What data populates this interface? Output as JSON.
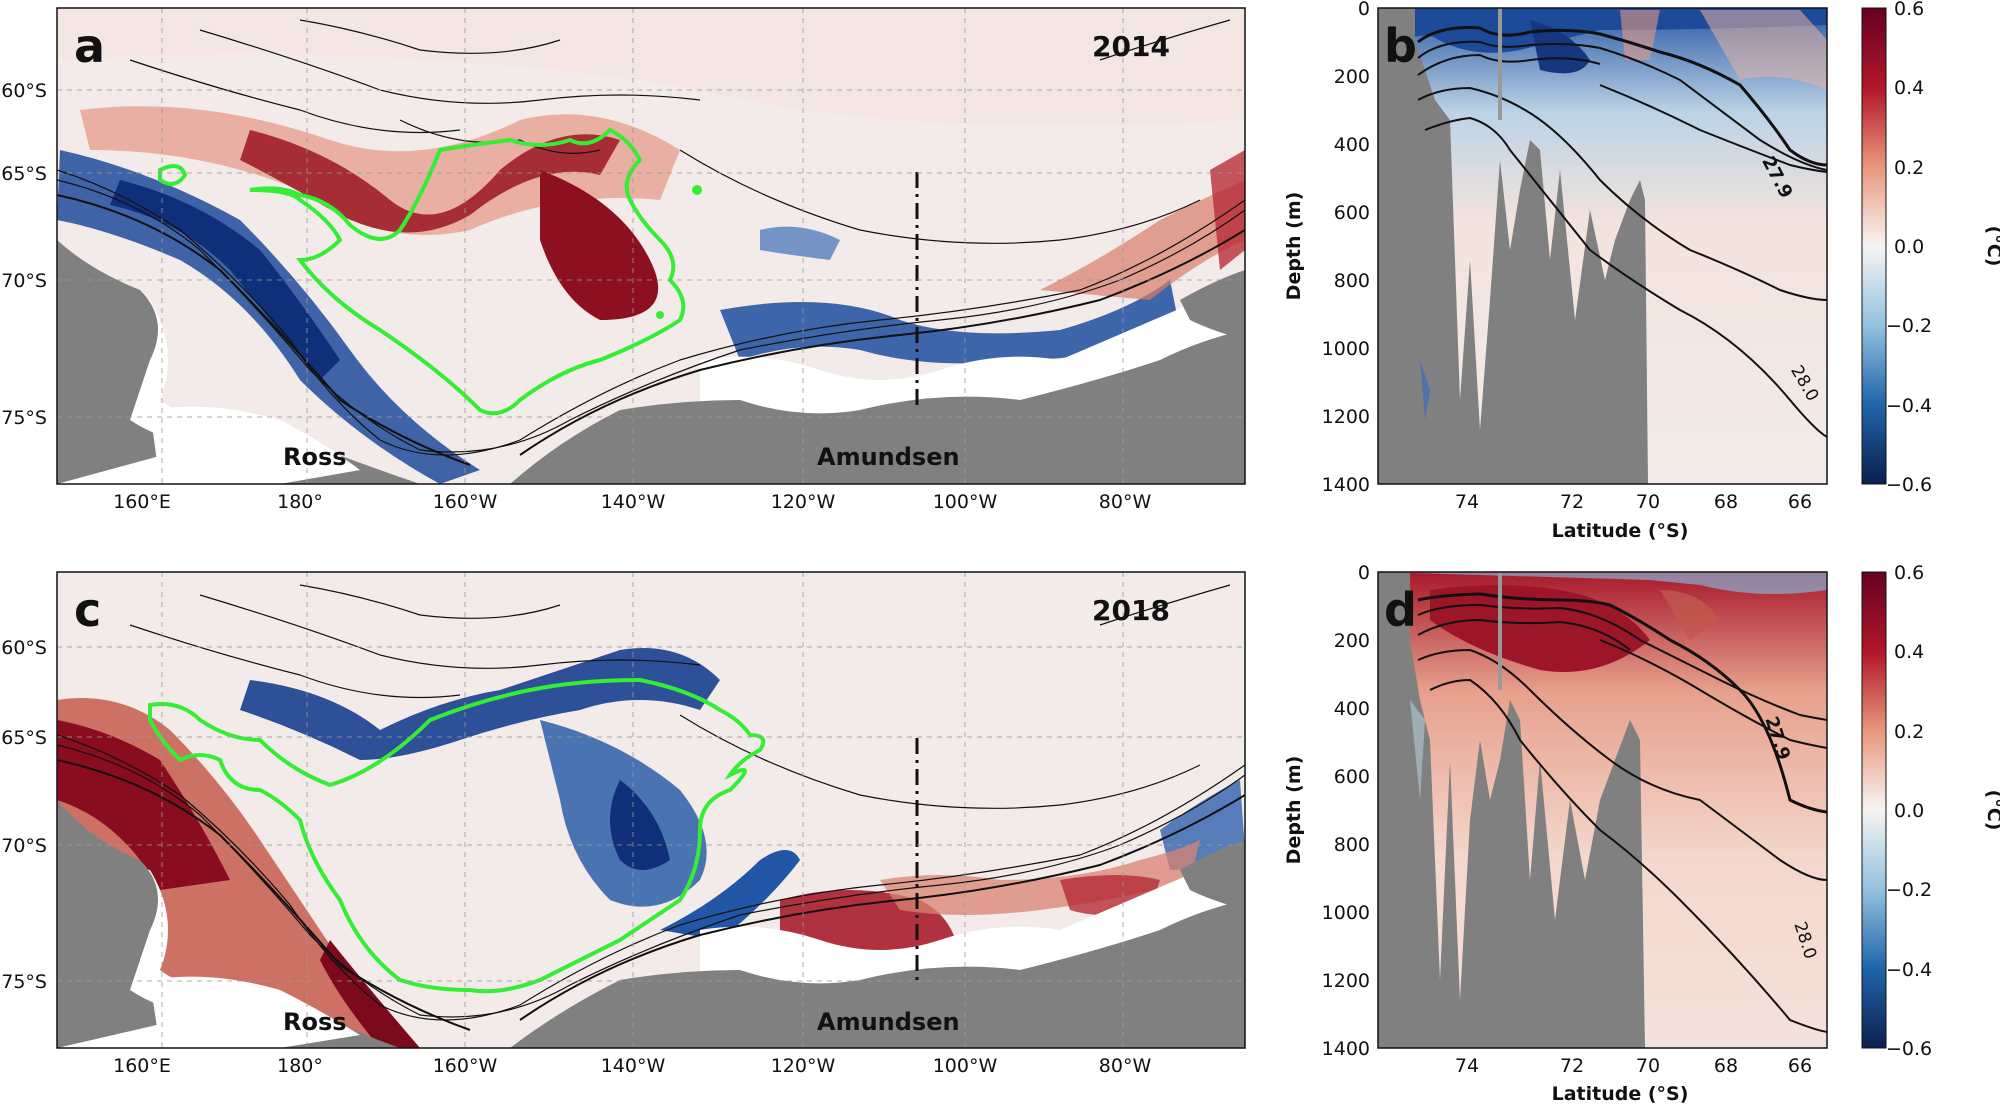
{
  "colors": {
    "land": "#808080",
    "ice_shelf": "#ffffff",
    "warm": "#8b0a1e",
    "cold": "#0d3a8a",
    "contour_green": "#33ee33"
  },
  "map_panels": [
    {
      "letter": "a",
      "year": "2014",
      "anomaly_in_box": "warm"
    },
    {
      "letter": "c",
      "year": "2018",
      "anomaly_in_box": "cold"
    }
  ],
  "map_axes": {
    "lat_ticks": [
      "60°S",
      "65°S",
      "70°S",
      "75°S"
    ],
    "lon_ticks": [
      "160°E",
      "180°",
      "160°W",
      "140°W",
      "120°W",
      "100°W",
      "80°W"
    ]
  },
  "region_labels": {
    "ross": "Ross",
    "amundsen": "Amundsen"
  },
  "section_panels": [
    {
      "letter": "b",
      "shelf_anomaly": "cold"
    },
    {
      "letter": "d",
      "shelf_anomaly": "warm"
    }
  ],
  "section_axes": {
    "ylabel": "Depth (m)",
    "xlabel": "Latitude (°S)",
    "depth_ticks": [
      "0",
      "200",
      "400",
      "600",
      "800",
      "1000",
      "1200",
      "1400"
    ],
    "lat_ticks": [
      "74",
      "72",
      "70",
      "68",
      "66"
    ]
  },
  "isopycnal_labels": {
    "bold": "27.9",
    "thin": "28.0"
  },
  "colorbar": {
    "unit": "(°C)",
    "ticks": [
      "0.6",
      "0.4",
      "0.2",
      "0.0",
      "−0.2",
      "−0.4",
      "−0.6"
    ]
  }
}
